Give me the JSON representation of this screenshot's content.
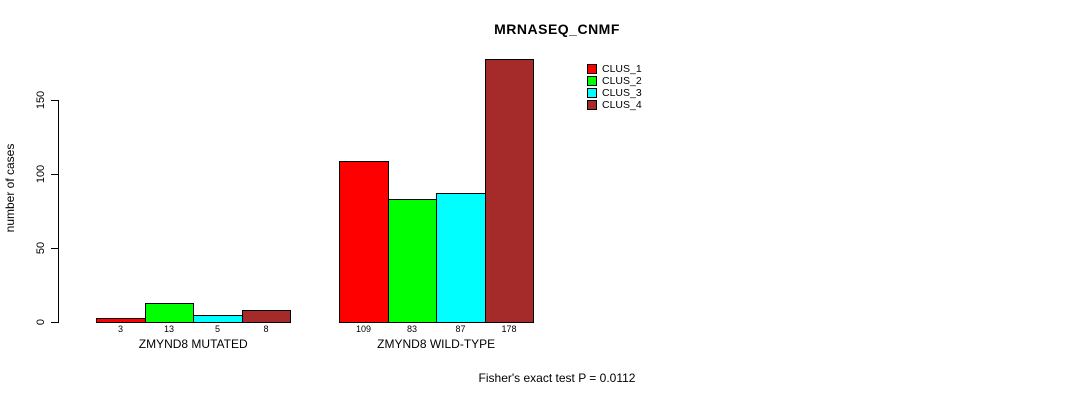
{
  "chart_data": {
    "type": "bar",
    "title": "MRNASEQ_CNMF",
    "ylabel": "number of cases",
    "xlabel": "",
    "categories": [
      "ZMYND8 MUTATED",
      "ZMYND8 WILD-TYPE"
    ],
    "series": [
      {
        "name": "CLUS_1",
        "color": "#FF0000",
        "values": [
          3,
          109
        ]
      },
      {
        "name": "CLUS_2",
        "color": "#00FF00",
        "values": [
          13,
          83
        ]
      },
      {
        "name": "CLUS_3",
        "color": "#00FFFF",
        "values": [
          5,
          87
        ]
      },
      {
        "name": "CLUS_4",
        "color": "#A52A2A",
        "values": [
          8,
          178
        ]
      }
    ],
    "yticks": [
      0,
      50,
      100,
      150
    ],
    "ylim": [
      0,
      178
    ],
    "grid": false,
    "legend_position": "top-right",
    "bar_value_labels": true,
    "annotation": "Fisher's exact test P = 0.0112"
  }
}
